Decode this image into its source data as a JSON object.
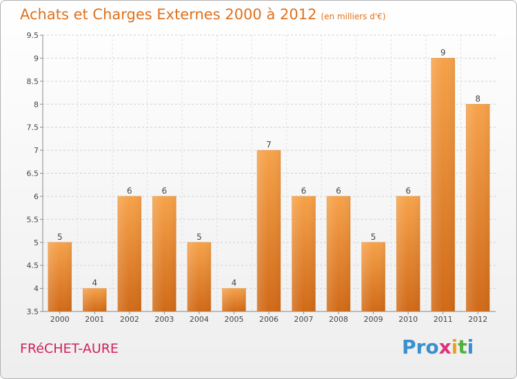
{
  "title": "Achats et Charges Externes 2000 à 2012",
  "subtitle": "(en milliers d'€)",
  "town": "FRéCHET-AURE",
  "logo": {
    "letters": [
      "P",
      "r",
      "o",
      "x",
      "i",
      "t",
      "i"
    ],
    "colors": [
      "#3a8fd0",
      "#3a8fd0",
      "#3a8fd0",
      "#e0307a",
      "#f0a020",
      "#50b040",
      "#3a8fd0"
    ]
  },
  "colors": {
    "bar_top": "#f6a24a",
    "bar_bottom": "#d06a18",
    "title": "#e0701a",
    "town": "#d0205a"
  },
  "chart_data": {
    "type": "bar",
    "title": "Achats et Charges Externes 2000 à 2012",
    "subtitle": "(en milliers d'€)",
    "categories": [
      "2000",
      "2001",
      "2002",
      "2003",
      "2004",
      "2005",
      "2006",
      "2007",
      "2008",
      "2009",
      "2010",
      "2011",
      "2012"
    ],
    "values": [
      5,
      4,
      6,
      6,
      5,
      4,
      7,
      6,
      6,
      5,
      6,
      9,
      8
    ],
    "value_labels": [
      "5",
      "4",
      "6",
      "6",
      "5",
      "4",
      "7",
      "6",
      "6",
      "5",
      "6",
      "9",
      "8"
    ],
    "ylim": [
      3.5,
      9.5
    ],
    "yticks": [
      3.5,
      4,
      4.5,
      5,
      5.5,
      6,
      6.5,
      7,
      7.5,
      8,
      8.5,
      9,
      9.5
    ],
    "ytick_labels": [
      "3.5",
      "4",
      "4.5",
      "5",
      "5.5",
      "6",
      "6.5",
      "7",
      "7.5",
      "8",
      "8.5",
      "9",
      "9.5"
    ],
    "grid": true,
    "xlabel": "",
    "ylabel": ""
  }
}
